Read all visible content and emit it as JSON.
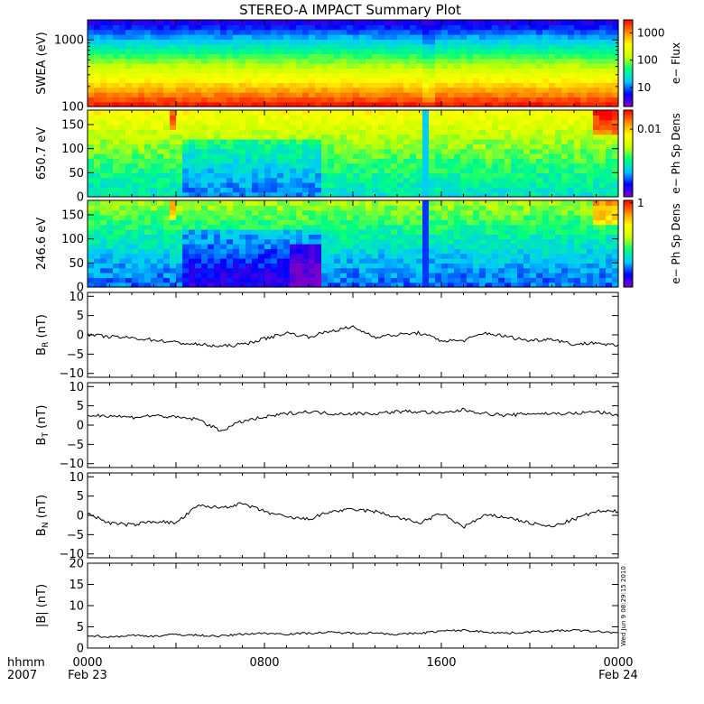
{
  "title": "STEREO-A IMPACT Summary Plot",
  "stamp": "Wed Jun 9 08:29:15 2010",
  "time_axis": {
    "row1_label": "hhmm",
    "row2_label": "2007",
    "ticks": [
      {
        "hour": 0,
        "label": "0000",
        "date": "Feb 23"
      },
      {
        "hour": 8,
        "label": "0800",
        "date": ""
      },
      {
        "hour": 16,
        "label": "1600",
        "date": ""
      },
      {
        "hour": 24,
        "label": "0000",
        "date": "Feb 24"
      }
    ],
    "range_hours": [
      0,
      24
    ]
  },
  "colors": {
    "spectrogram_scale": [
      "#7a00c8",
      "#0000ff",
      "#00c8ff",
      "#00ff7f",
      "#c8ff00",
      "#ffff00",
      "#ff8c00",
      "#ff0000"
    ],
    "line": "#000000"
  },
  "chart_data": [
    {
      "id": "swea",
      "type": "heatmap",
      "ylabel": "SWEA (eV)",
      "yscale": "log",
      "ylim": [
        100,
        2000
      ],
      "yticks": [
        {
          "value": 1000,
          "label": "1000"
        },
        {
          "value": 100,
          "label": "100"
        }
      ],
      "colorbar_label": "e− Flux",
      "colorbar_ticks": [
        {
          "value": 1000,
          "label": "1000"
        },
        {
          "value": 100,
          "label": "100"
        },
        {
          "value": 10,
          "label": "10"
        }
      ],
      "colorbar_range": [
        2,
        3000
      ]
    },
    {
      "id": "pad650",
      "type": "heatmap",
      "ylabel": "650.7 eV",
      "ylim": [
        0,
        180
      ],
      "yticks": [
        {
          "value": 150,
          "label": "150"
        },
        {
          "value": 100,
          "label": "100"
        },
        {
          "value": 50,
          "label": "50"
        },
        {
          "value": 0,
          "label": "0"
        }
      ],
      "colorbar_label": "e− Ph Sp Dens",
      "colorbar_ticks": [
        {
          "value": 0.01,
          "label": "0.01"
        }
      ]
    },
    {
      "id": "pad246",
      "type": "heatmap",
      "ylabel": "246.6 eV",
      "ylim": [
        0,
        180
      ],
      "yticks": [
        {
          "value": 150,
          "label": "150"
        },
        {
          "value": 100,
          "label": "100"
        },
        {
          "value": 50,
          "label": "50"
        },
        {
          "value": 0,
          "label": "0"
        }
      ],
      "colorbar_label": "e− Ph Sp Dens",
      "colorbar_ticks": [
        {
          "value": 1,
          "label": "1"
        }
      ]
    },
    {
      "id": "br",
      "type": "line",
      "ylabel": "B",
      "ylabel_sub": "R",
      "ylabel_unit": " (nT)",
      "ylim": [
        -11,
        11
      ],
      "yticks": [
        {
          "value": 10,
          "label": "10"
        },
        {
          "value": 5,
          "label": "5"
        },
        {
          "value": 0,
          "label": "0"
        },
        {
          "value": -5,
          "label": "−5"
        },
        {
          "value": -10,
          "label": "−10"
        }
      ],
      "x": [
        0,
        1,
        2,
        3,
        4,
        5,
        6,
        7,
        8,
        9,
        10,
        11,
        12,
        13,
        14,
        15,
        16,
        17,
        18,
        19,
        20,
        21,
        22,
        23,
        24
      ],
      "values": [
        0,
        -0.5,
        -0.8,
        -1.3,
        -2,
        -2.5,
        -3,
        -2.5,
        -1,
        0.5,
        -0.5,
        1,
        2,
        -0.5,
        0,
        0.5,
        -1.5,
        -1.5,
        0.5,
        -0.5,
        -1.5,
        -1,
        -2.5,
        -2,
        -3
      ]
    },
    {
      "id": "bt",
      "type": "line",
      "ylabel": "B",
      "ylabel_sub": "T",
      "ylabel_unit": " (nT)",
      "ylim": [
        -11,
        11
      ],
      "yticks": [
        {
          "value": 10,
          "label": "10"
        },
        {
          "value": 5,
          "label": "5"
        },
        {
          "value": 0,
          "label": "0"
        },
        {
          "value": -5,
          "label": "−5"
        },
        {
          "value": -10,
          "label": "−10"
        }
      ],
      "x": [
        0,
        1,
        2,
        3,
        4,
        5,
        6,
        7,
        8,
        9,
        10,
        11,
        12,
        13,
        14,
        15,
        16,
        17,
        18,
        19,
        20,
        21,
        22,
        23,
        24
      ],
      "values": [
        2.5,
        2.5,
        2,
        2.5,
        2,
        1.5,
        -1.5,
        1,
        2,
        3,
        3.5,
        3,
        3,
        3,
        3.5,
        3.5,
        3,
        4,
        3,
        2.5,
        3,
        3,
        3,
        3.5,
        2.5
      ]
    },
    {
      "id": "bn",
      "type": "line",
      "ylabel": "B",
      "ylabel_sub": "N",
      "ylabel_unit": " (nT)",
      "ylim": [
        -11,
        11
      ],
      "yticks": [
        {
          "value": 10,
          "label": "10"
        },
        {
          "value": 5,
          "label": "5"
        },
        {
          "value": 0,
          "label": "0"
        },
        {
          "value": -5,
          "label": "−5"
        },
        {
          "value": -10,
          "label": "−10"
        }
      ],
      "x": [
        0,
        1,
        2,
        3,
        4,
        5,
        6,
        7,
        8,
        9,
        10,
        11,
        12,
        13,
        14,
        15,
        16,
        17,
        18,
        19,
        20,
        21,
        22,
        23,
        24
      ],
      "values": [
        0.5,
        -2,
        -2.5,
        -1.5,
        -2,
        2.5,
        2,
        3,
        1,
        -0.5,
        -1,
        1,
        1.5,
        1,
        -0.5,
        -2,
        0.5,
        -3,
        0,
        -0.5,
        -2,
        -3,
        -1,
        1,
        1
      ]
    },
    {
      "id": "bmag",
      "type": "line",
      "ylabel": "|B| (nT)",
      "ylim": [
        0,
        20
      ],
      "yticks": [
        {
          "value": 20,
          "label": "20"
        },
        {
          "value": 15,
          "label": "15"
        },
        {
          "value": 10,
          "label": "10"
        },
        {
          "value": 5,
          "label": "5"
        },
        {
          "value": 0,
          "label": "0"
        }
      ],
      "x": [
        0,
        1,
        2,
        3,
        4,
        5,
        6,
        7,
        8,
        9,
        10,
        11,
        12,
        13,
        14,
        15,
        16,
        17,
        18,
        19,
        20,
        21,
        22,
        23,
        24
      ],
      "values": [
        3,
        2.6,
        3,
        2.8,
        3.2,
        3,
        2.8,
        3.3,
        3.5,
        3.3,
        3.5,
        3.7,
        3.5,
        3.6,
        3.2,
        3.5,
        4,
        4.2,
        3.8,
        3.5,
        3.8,
        4,
        4.2,
        3.9,
        3.6
      ]
    }
  ]
}
